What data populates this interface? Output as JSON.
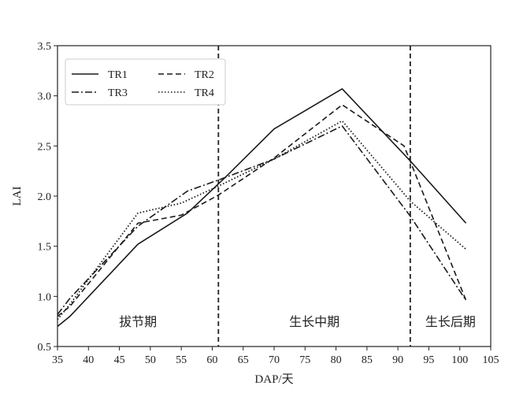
{
  "chart_data": {
    "type": "line",
    "xlabel": "DAP/天",
    "ylabel": "LAI",
    "xlim": [
      35,
      105
    ],
    "ylim": [
      0.5,
      3.5
    ],
    "xticks": [
      "35",
      "40",
      "45",
      "50",
      "55",
      "60",
      "65",
      "70",
      "75",
      "80",
      "85",
      "90",
      "95",
      "100",
      "105"
    ],
    "yticks": [
      "0.5",
      "1.0",
      "1.5",
      "2.0",
      "2.5",
      "3.0",
      "3.5"
    ],
    "grid": false,
    "legend_position": "top-left",
    "series": [
      {
        "name": "TR1",
        "style": "solid",
        "x": [
          35,
          37,
          48,
          56,
          62,
          70,
          81,
          92,
          101
        ],
        "y": [
          0.7,
          0.8,
          1.52,
          1.83,
          2.18,
          2.67,
          3.07,
          2.35,
          1.73
        ]
      },
      {
        "name": "TR2",
        "style": "dashed",
        "x": [
          35,
          37,
          48,
          55,
          61,
          70,
          81,
          91,
          101
        ],
        "y": [
          0.8,
          0.9,
          1.73,
          1.81,
          2.01,
          2.38,
          2.91,
          2.5,
          0.96
        ]
      },
      {
        "name": "TR3",
        "style": "dashdot",
        "x": [
          35,
          37,
          48,
          56,
          61,
          70,
          81,
          92,
          101
        ],
        "y": [
          0.82,
          0.98,
          1.7,
          2.05,
          2.16,
          2.37,
          2.7,
          1.8,
          0.96
        ]
      },
      {
        "name": "TR4",
        "style": "dotted",
        "x": [
          35,
          37,
          48,
          55,
          61,
          70,
          81,
          92,
          101
        ],
        "y": [
          0.77,
          0.92,
          1.83,
          1.93,
          2.1,
          2.37,
          2.75,
          1.95,
          1.47
        ]
      }
    ],
    "vlines": [
      61,
      92
    ],
    "regions": [
      {
        "label": "拔节期",
        "x_center": 48
      },
      {
        "label": "生长中期",
        "x_center": 76.5
      },
      {
        "label": "生长后期",
        "x_center": 98.5
      }
    ],
    "region_label_y": 0.75
  }
}
